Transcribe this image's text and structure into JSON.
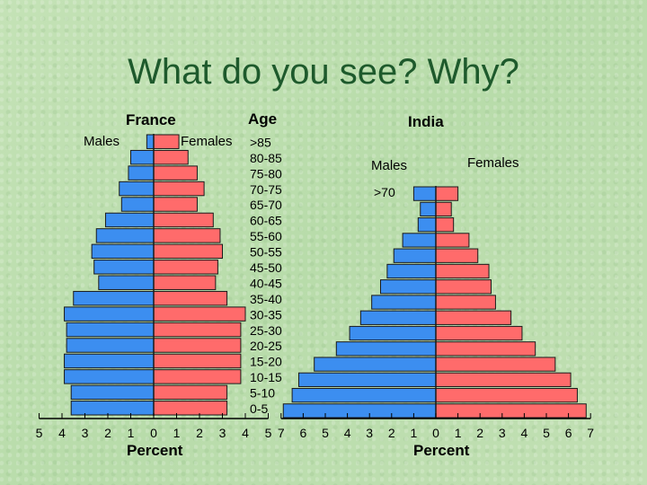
{
  "slide": {
    "title": "What do you see?  Why?"
  },
  "legend": {
    "france_males": "Males",
    "france_females": "Females",
    "india_males": "Males",
    "india_females": "Females",
    "age_header": "Age"
  },
  "colors": {
    "male": "#3c8ef0",
    "female": "#ff6b6b",
    "outline": "#1a1a1a"
  },
  "chart_data": [
    {
      "type": "bar",
      "orientation": "horizontal-population-pyramid",
      "title": "France",
      "xlabel": "Percent",
      "ylabel": "Age",
      "xlim": [
        -5,
        5
      ],
      "x_tick_labels": [
        "5",
        "4",
        "3",
        "2",
        "1",
        "0",
        "1",
        "2",
        "3",
        "4",
        "5"
      ],
      "categories": [
        ">85",
        "80-85",
        "75-80",
        "70-75",
        "65-70",
        "60-65",
        "55-60",
        "50-55",
        "45-50",
        "40-45",
        "35-40",
        "30-35",
        "25-30",
        "20-25",
        "15-20",
        "10-15",
        "5-10",
        "0-5"
      ],
      "series": [
        {
          "name": "Males",
          "values": [
            0.3,
            1.0,
            1.1,
            1.5,
            1.4,
            2.1,
            2.5,
            2.7,
            2.6,
            2.4,
            3.5,
            3.9,
            3.8,
            3.8,
            3.9,
            3.9,
            3.6,
            3.6
          ]
        },
        {
          "name": "Females",
          "values": [
            1.1,
            1.5,
            1.9,
            2.2,
            1.9,
            2.6,
            2.9,
            3.0,
            2.8,
            2.7,
            3.2,
            4.0,
            3.8,
            3.8,
            3.8,
            3.8,
            3.2,
            3.2
          ]
        }
      ]
    },
    {
      "type": "bar",
      "orientation": "horizontal-population-pyramid",
      "title": "India",
      "xlabel": "Percent",
      "ylabel": "Age",
      "xlim": [
        -7,
        7
      ],
      "x_tick_labels": [
        "7",
        "6",
        "5",
        "4",
        "3",
        "2",
        "1",
        "0",
        "1",
        "2",
        "3",
        "4",
        "5",
        "6",
        "7"
      ],
      "categories": [
        ">70",
        "65-70",
        "60-65",
        "55-60",
        "50-55",
        "45-50",
        "40-45",
        "35-40",
        "30-35",
        "25-30",
        "20-25",
        "15-20",
        "10-15",
        "5-10",
        "0-5"
      ],
      "series": [
        {
          "name": "Males",
          "values": [
            1.0,
            0.7,
            0.8,
            1.5,
            1.9,
            2.2,
            2.5,
            2.9,
            3.4,
            3.9,
            4.5,
            5.5,
            6.2,
            6.5,
            6.9
          ]
        },
        {
          "name": "Females",
          "values": [
            1.0,
            0.7,
            0.8,
            1.5,
            1.9,
            2.4,
            2.5,
            2.7,
            3.4,
            3.9,
            4.5,
            5.4,
            6.1,
            6.4,
            6.8
          ]
        }
      ]
    }
  ]
}
